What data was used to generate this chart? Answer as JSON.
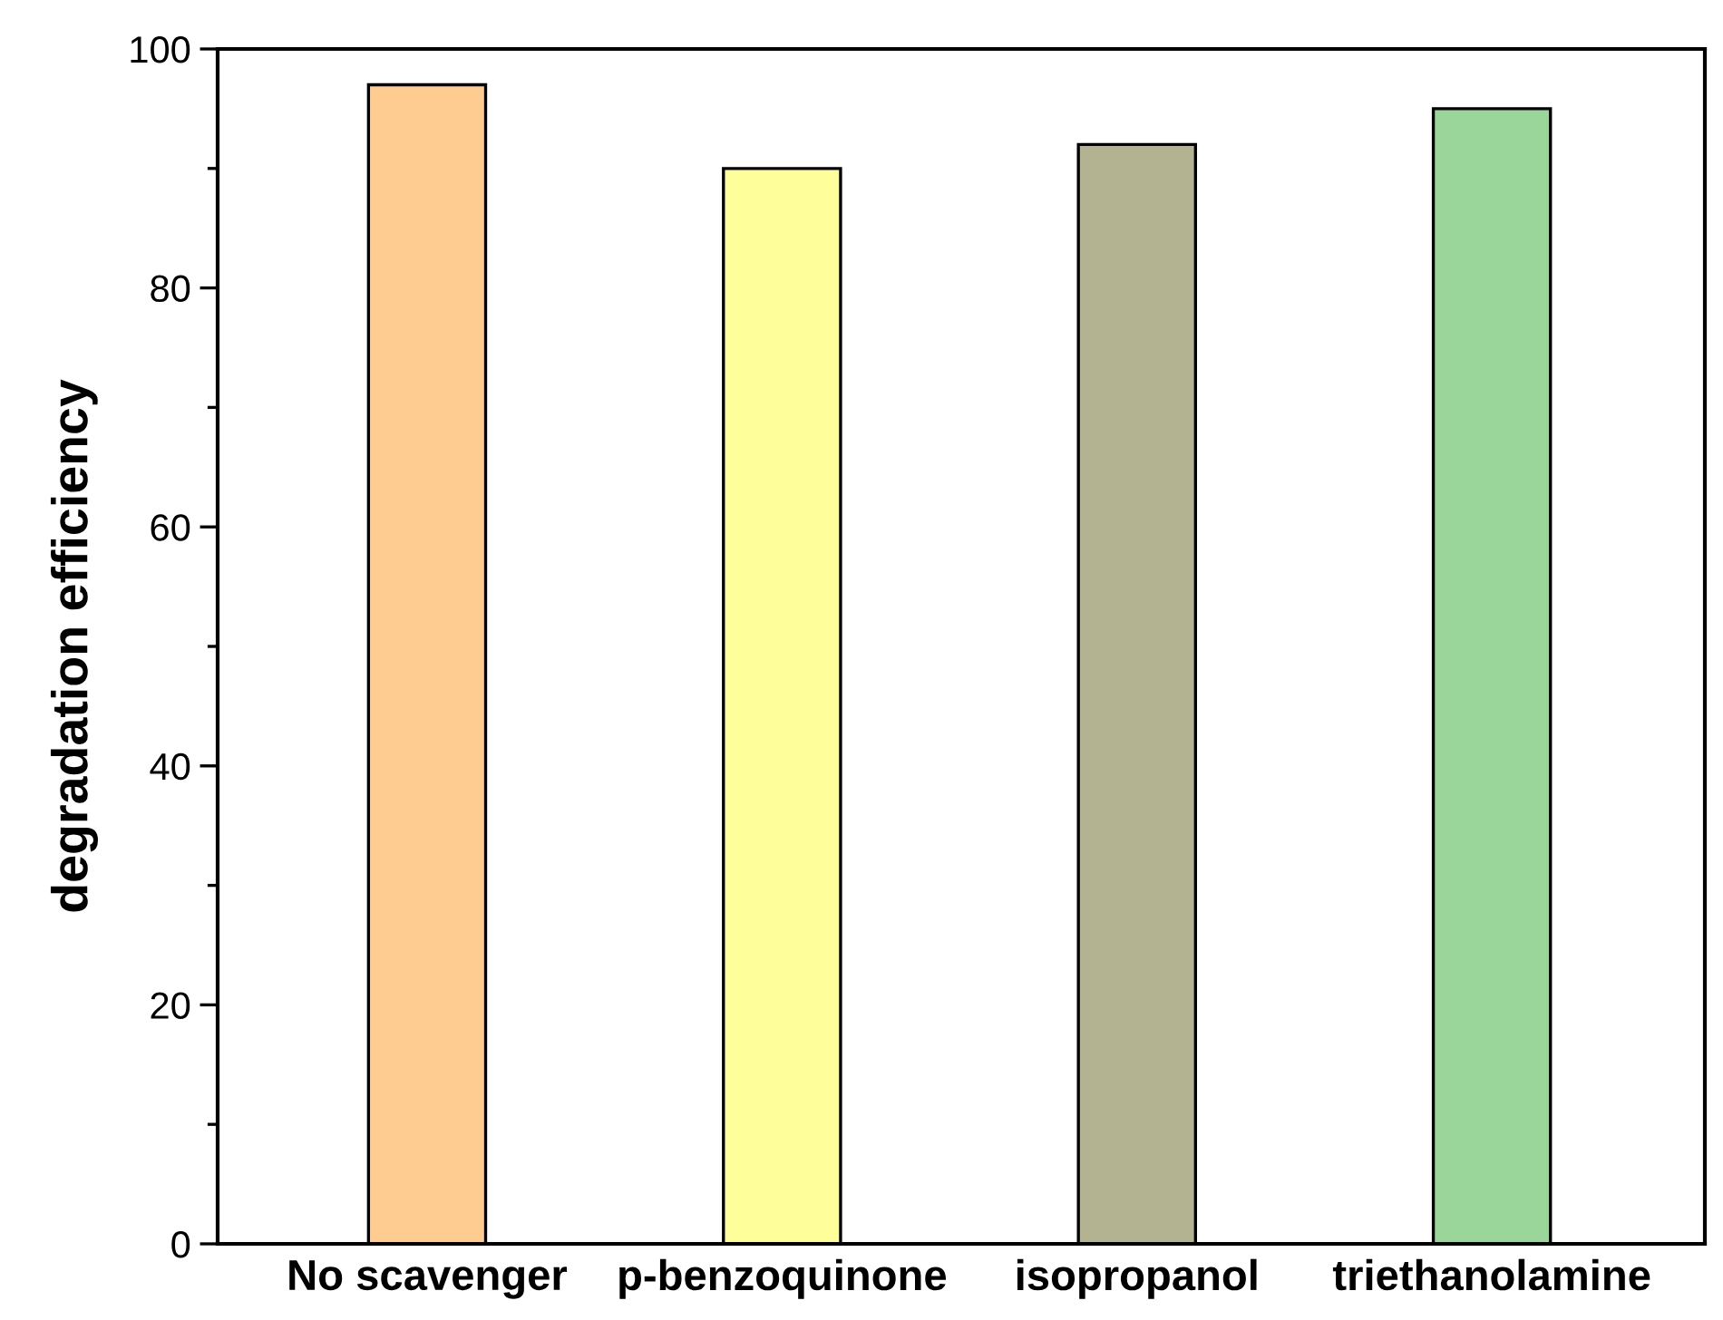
{
  "chart_data": {
    "type": "bar",
    "ylabel": "degradation efficiency",
    "categories": [
      "No scavenger",
      "p-benzoquinone",
      "isopropanol",
      "triethanolamine"
    ],
    "values": [
      97,
      90,
      92,
      95
    ],
    "colors": [
      "#fecb91",
      "#fefe9b",
      "#b3b391",
      "#9ad59a"
    ],
    "ylim": [
      0,
      100
    ],
    "yticks": [
      0,
      {
        "value": 10,
        "label": null
      },
      20,
      {
        "value": 30,
        "label": null
      },
      40,
      {
        "value": 50,
        "label": null
      },
      60,
      {
        "value": 70,
        "label": null
      },
      80,
      {
        "value": 90,
        "label": null
      },
      100
    ],
    "grid": false
  }
}
